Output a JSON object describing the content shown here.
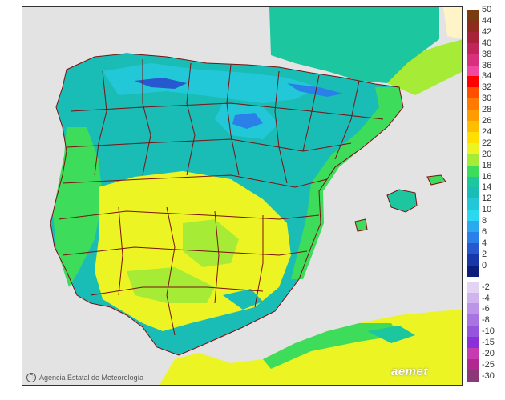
{
  "credit": {
    "symbol": "C",
    "text": "Agencia Estatal de Meteorología"
  },
  "logo": "aemet",
  "legend": {
    "positive": [
      {
        "label": "50",
        "color": "#7a3b10"
      },
      {
        "label": "44",
        "color": "#8e2b1c"
      },
      {
        "label": "42",
        "color": "#a8233a"
      },
      {
        "label": "40",
        "color": "#c0265a"
      },
      {
        "label": "38",
        "color": "#d8307c"
      },
      {
        "label": "36",
        "color": "#f04aa0"
      },
      {
        "label": "34",
        "color": "#ff0000"
      },
      {
        "label": "32",
        "color": "#ff5000"
      },
      {
        "label": "30",
        "color": "#ff7a00"
      },
      {
        "label": "28",
        "color": "#ff9c00"
      },
      {
        "label": "26",
        "color": "#ffbe00"
      },
      {
        "label": "24",
        "color": "#ffe000"
      },
      {
        "label": "22",
        "color": "#ecf423"
      },
      {
        "label": "20",
        "color": "#a6ec36"
      },
      {
        "label": "18",
        "color": "#3ddc5b"
      },
      {
        "label": "16",
        "color": "#1cc7a0"
      },
      {
        "label": "14",
        "color": "#1abcb6"
      },
      {
        "label": "12",
        "color": "#22c8d8"
      },
      {
        "label": "10",
        "color": "#2ad8f0"
      },
      {
        "label": "8",
        "color": "#2aa8f0"
      },
      {
        "label": "6",
        "color": "#2a80e8"
      },
      {
        "label": "4",
        "color": "#2858d0"
      },
      {
        "label": "2",
        "color": "#1838a8"
      },
      {
        "label": "0",
        "color": "#0c1e7c"
      }
    ],
    "negative": [
      {
        "label": "-2",
        "color": "#e4d4f4"
      },
      {
        "label": "-4",
        "color": "#d0b4ee"
      },
      {
        "label": "-6",
        "color": "#bc94e8"
      },
      {
        "label": "-8",
        "color": "#a874e2"
      },
      {
        "label": "-10",
        "color": "#9454dc"
      },
      {
        "label": "-15",
        "color": "#8a30d8"
      },
      {
        "label": "-20",
        "color": "#c43cb0"
      },
      {
        "label": "-25",
        "color": "#b02890"
      },
      {
        "label": "-30",
        "color": "#8c3878"
      }
    ]
  },
  "map_colors": {
    "sea": "#e3e3e3",
    "border": "#7a1010",
    "t12": "#22c8d8",
    "t14": "#1abcb6",
    "t16": "#1cc7a0",
    "t18": "#3ddc5b",
    "t20": "#a6ec36",
    "t22": "#ecf423",
    "t24": "#ffe000",
    "t4": "#2858d0",
    "t8": "#2aa8f0"
  }
}
